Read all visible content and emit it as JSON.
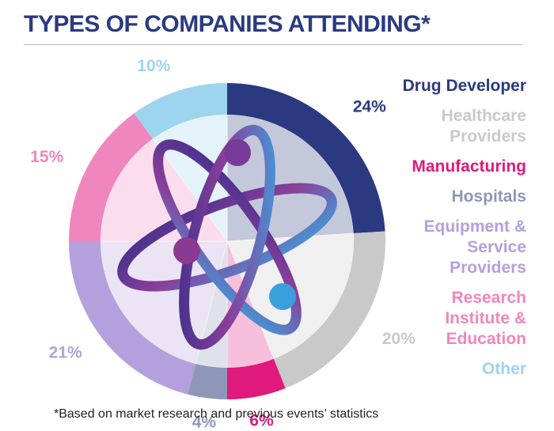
{
  "chart_data": {
    "type": "pie",
    "title": "TYPES OF COMPANIES ATTENDING*",
    "footnote": "*Based on market research and previous events’ statistics",
    "categories": [
      "Drug Developer",
      "Healthcare Providers",
      "Manufacturing",
      "Hospitals",
      "Equipment & Service Providers",
      "Research Institute & Education",
      "Other"
    ],
    "values": [
      24,
      20,
      6,
      4,
      21,
      15,
      10
    ],
    "value_labels": [
      "24%",
      "20%",
      "6%",
      "4%",
      "21%",
      "15%",
      "10%"
    ],
    "colors": [
      "#2b3a80",
      "#c9c9c9",
      "#e0197d",
      "#8e97b8",
      "#b4a0dc",
      "#ef86bd",
      "#9dd4ee"
    ],
    "legend": "right"
  }
}
